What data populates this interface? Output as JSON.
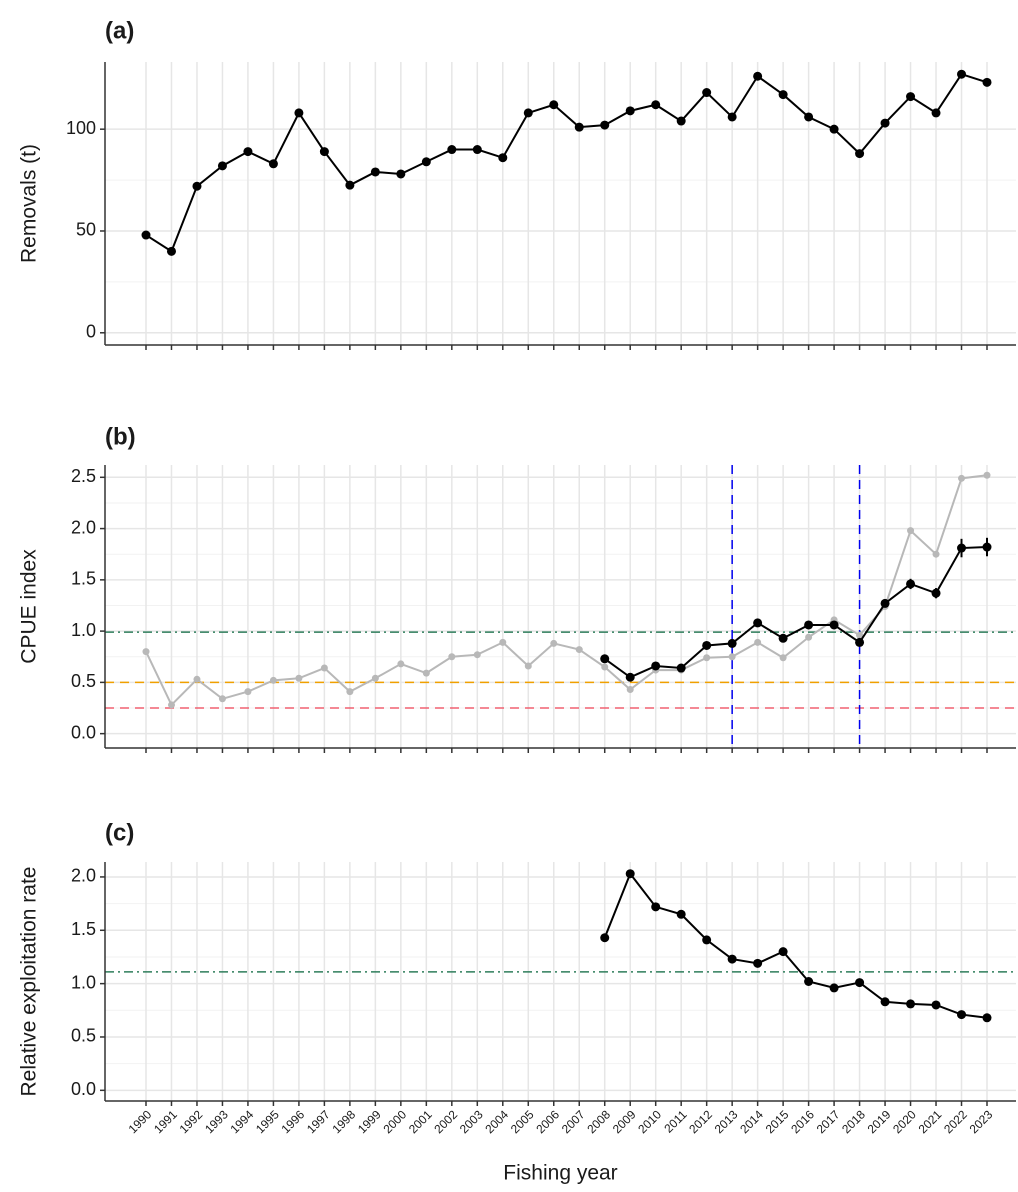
{
  "chart_data": [
    {
      "type": "line",
      "title": "(a)",
      "y_label": "Removals (t)",
      "ylim": [
        -6,
        133
      ],
      "yticks": [
        0,
        50,
        100
      ],
      "grid": true,
      "series": [
        {
          "color": "#000000",
          "values": [
            48,
            40,
            72,
            82,
            89,
            83,
            108,
            89,
            72.5,
            79,
            78,
            84,
            90,
            90,
            86,
            108,
            112,
            101,
            102,
            109,
            112,
            104,
            118,
            106,
            126,
            117,
            106,
            100,
            88,
            103,
            116,
            108,
            127,
            123
          ]
        }
      ]
    },
    {
      "type": "line",
      "title": "(b)",
      "y_label": "CPUE index",
      "ylim": [
        -0.14,
        2.62
      ],
      "yticks": [
        0.0,
        0.5,
        1.0,
        1.5,
        2.0,
        2.5
      ],
      "grid": true,
      "hlines": [
        {
          "value": 0.99,
          "color": "#2e7d5b",
          "dash": "dashdot"
        },
        {
          "value": 0.5,
          "color": "#f0a000",
          "dash": "dashed"
        },
        {
          "value": 0.25,
          "color": "#f06070",
          "dash": "dashed"
        }
      ],
      "vlines": [
        {
          "x": 2013,
          "color": "#0000ee",
          "dash": "dashed"
        },
        {
          "x": 2018,
          "color": "#0000ee",
          "dash": "dashed"
        }
      ],
      "series": [
        {
          "color": "#b8b8b8",
          "values": [
            0.8,
            0.28,
            0.53,
            0.34,
            0.41,
            0.52,
            0.54,
            0.64,
            0.41,
            0.54,
            0.68,
            0.59,
            0.75,
            0.77,
            0.89,
            0.66,
            0.88,
            0.82,
            0.65,
            0.43,
            0.62,
            0.62,
            0.74,
            0.75,
            0.89,
            0.74,
            0.94,
            1.11,
            0.96,
            1.24,
            1.98,
            1.75,
            2.49,
            2.52
          ]
        },
        {
          "color": "#000000",
          "values": [
            null,
            null,
            null,
            null,
            null,
            null,
            null,
            null,
            null,
            null,
            null,
            null,
            null,
            null,
            null,
            null,
            null,
            null,
            0.73,
            0.55,
            0.66,
            0.64,
            0.86,
            0.88,
            1.08,
            0.93,
            1.06,
            1.06,
            0.89,
            1.27,
            1.46,
            1.37,
            1.81,
            1.82
          ],
          "errors": [
            null,
            null,
            null,
            null,
            null,
            null,
            null,
            null,
            null,
            null,
            null,
            null,
            null,
            null,
            null,
            null,
            null,
            null,
            0.03,
            0.03,
            0.03,
            0.03,
            0.03,
            0.03,
            0.03,
            0.03,
            0.03,
            0.03,
            0.03,
            0.04,
            0.05,
            0.05,
            0.09,
            0.09
          ]
        }
      ]
    },
    {
      "type": "line",
      "title": "(c)",
      "y_label": "Relative exploitation rate",
      "x_label": "Fishing year",
      "categories": [
        "1990",
        "1991",
        "1992",
        "1993",
        "1994",
        "1995",
        "1996",
        "1997",
        "1998",
        "1999",
        "2000",
        "2001",
        "2002",
        "2003",
        "2004",
        "2005",
        "2006",
        "2007",
        "2008",
        "2009",
        "2010",
        "2011",
        "2012",
        "2013",
        "2014",
        "2015",
        "2016",
        "2017",
        "2018",
        "2019",
        "2020",
        "2021",
        "2022",
        "2023"
      ],
      "ylim": [
        -0.1,
        2.14
      ],
      "yticks": [
        0.0,
        0.5,
        1.0,
        1.5,
        2.0
      ],
      "grid": true,
      "hlines": [
        {
          "value": 1.11,
          "color": "#2e7d5b",
          "dash": "dashdot"
        }
      ],
      "series": [
        {
          "color": "#000000",
          "values": [
            null,
            null,
            null,
            null,
            null,
            null,
            null,
            null,
            null,
            null,
            null,
            null,
            null,
            null,
            null,
            null,
            null,
            null,
            1.43,
            2.03,
            1.72,
            1.65,
            1.41,
            1.23,
            1.19,
            1.3,
            1.02,
            0.96,
            1.01,
            0.83,
            0.81,
            0.8,
            0.71,
            0.68
          ]
        }
      ]
    }
  ]
}
